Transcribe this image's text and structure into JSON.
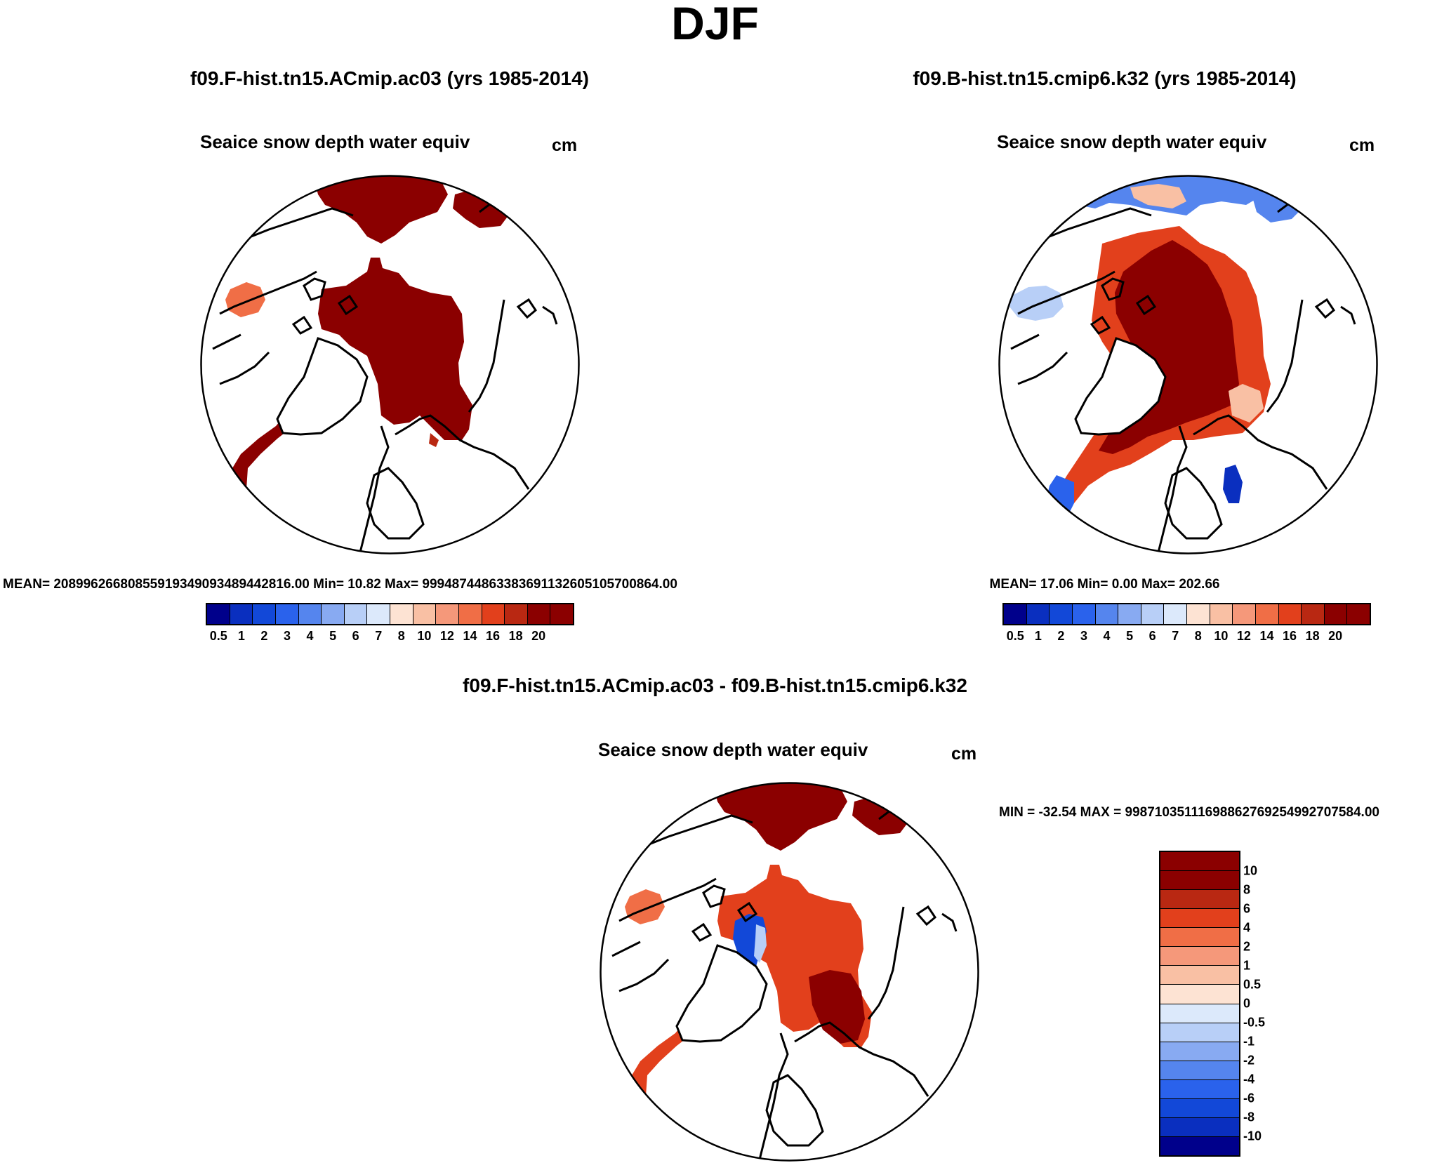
{
  "title": "DJF",
  "palette": {
    "levels14": [
      "#00008b",
      "#0a2fbf",
      "#1248d8",
      "#2a62ec",
      "#5585ee",
      "#88aaf2",
      "#b8cff7",
      "#dce9fb",
      "#fde3d3",
      "#f9c0a4",
      "#f5987a",
      "#f06e46",
      "#e2401c",
      "#b92812",
      "#8b0000"
    ],
    "diff14": [
      "#00008b",
      "#0a2fbf",
      "#1248d8",
      "#2a62ec",
      "#5585ee",
      "#88aaf2",
      "#b8cff7",
      "#dce9fb",
      "#fde3d3",
      "#f9c0a4",
      "#f5987a",
      "#f06e46",
      "#e2401c",
      "#b92812",
      "#8b0000"
    ]
  },
  "panels": [
    {
      "id": "left",
      "run_title": "f09.F-hist.tn15.ACmip.ac03 (yrs 1985-2014)",
      "var_title": "Seaice snow depth water equiv",
      "units": "cm",
      "stats": "MEAN= 20899626680855919349093489442816.00  Min=  10.82  Max= 99948744863383691132605105700864.00",
      "ticks": [
        "0.5",
        "1",
        "2",
        "3",
        "4",
        "5",
        "6",
        "7",
        "8",
        "10",
        "12",
        "14",
        "16",
        "18",
        "20"
      ]
    },
    {
      "id": "right",
      "run_title": "f09.B-hist.tn15.cmip6.k32 (yrs 1985-2014)",
      "var_title": "Seaice snow depth water equiv",
      "units": "cm",
      "stats": "MEAN=  17.06  Min=   0.00  Max= 202.66",
      "ticks": [
        "0.5",
        "1",
        "2",
        "3",
        "4",
        "5",
        "6",
        "7",
        "8",
        "10",
        "12",
        "14",
        "16",
        "18",
        "20"
      ]
    },
    {
      "id": "diff",
      "run_title": "f09.F-hist.tn15.ACmip.ac03 - f09.B-hist.tn15.cmip6.k32",
      "var_title": "Seaice snow depth water equiv",
      "units": "cm",
      "stats": "MIN = -32.54 MAX = 99871035111698862769254992707584.00",
      "ticks": [
        "10",
        "8",
        "6",
        "4",
        "2",
        "1",
        "0.5",
        "0",
        "-0.5",
        "-1",
        "-2",
        "-4",
        "-6",
        "-8",
        "-10"
      ]
    }
  ],
  "chart_data": [
    {
      "type": "heatmap",
      "projection": "north-polar-stereographic",
      "title": "f09.F-hist.tn15.ACmip.ac03 (yrs 1985-2014)",
      "variable": "Seaice snow depth water equiv",
      "units": "cm",
      "contour_levels": [
        0.5,
        1,
        2,
        3,
        4,
        5,
        6,
        7,
        8,
        10,
        12,
        14,
        16,
        18,
        20
      ],
      "mean": "20899626680855919349093489442816.00",
      "min": 10.82,
      "max": "99948744863383691132605105700864.00"
    },
    {
      "type": "heatmap",
      "projection": "north-polar-stereographic",
      "title": "f09.B-hist.tn15.cmip6.k32 (yrs 1985-2014)",
      "variable": "Seaice snow depth water equiv",
      "units": "cm",
      "contour_levels": [
        0.5,
        1,
        2,
        3,
        4,
        5,
        6,
        7,
        8,
        10,
        12,
        14,
        16,
        18,
        20
      ],
      "mean": 17.06,
      "min": 0.0,
      "max": 202.66
    },
    {
      "type": "heatmap",
      "projection": "north-polar-stereographic",
      "title": "f09.F-hist.tn15.ACmip.ac03 - f09.B-hist.tn15.cmip6.k32",
      "variable": "Seaice snow depth water equiv",
      "units": "cm",
      "contour_levels": [
        -10,
        -8,
        -6,
        -4,
        -2,
        -1,
        -0.5,
        0,
        0.5,
        1,
        2,
        4,
        6,
        8,
        10
      ],
      "min": -32.54,
      "max": "99871035111698862769254992707584.00"
    }
  ]
}
